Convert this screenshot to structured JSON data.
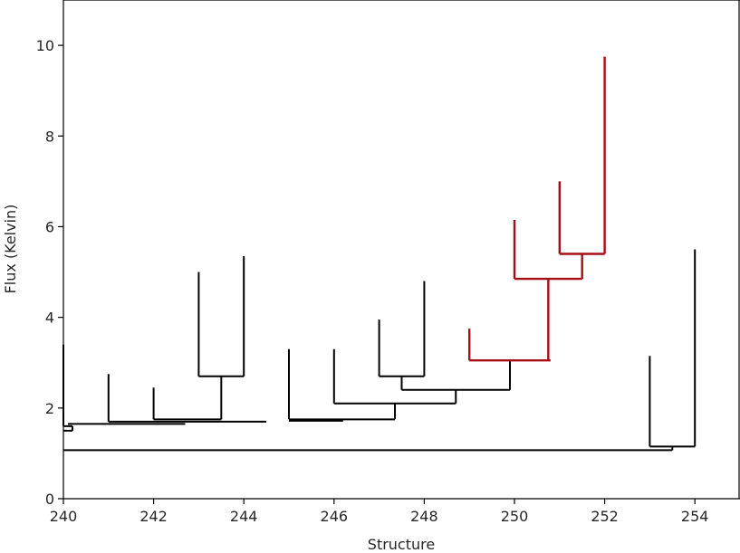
{
  "chart_data": {
    "type": "dendrogram",
    "title": "",
    "xlabel": "Structure",
    "ylabel": "Flux (Kelvin)",
    "xlim": [
      240,
      255
    ],
    "ylim": [
      0,
      11
    ],
    "xticks": [
      "240",
      "242",
      "244",
      "246",
      "248",
      "250",
      "252",
      "254"
    ],
    "yticks": [
      "0",
      "2",
      "4",
      "6",
      "8",
      "10"
    ],
    "grid": false,
    "default_color": "#000000",
    "highlight_color": "#a50f15",
    "segments": [
      {
        "x": [
          240.0,
          240.0
        ],
        "y": [
          1.6,
          3.4
        ]
      },
      {
        "x": [
          240.0,
          240.2
        ],
        "y": [
          1.6,
          1.6
        ]
      },
      {
        "x": [
          240.2,
          240.2
        ],
        "y": [
          1.5,
          1.6
        ]
      },
      {
        "x": [
          240.0,
          240.2
        ],
        "y": [
          1.5,
          1.5
        ]
      },
      {
        "x": [
          241.0,
          241.0
        ],
        "y": [
          1.7,
          2.75
        ]
      },
      {
        "x": [
          242.0,
          242.0
        ],
        "y": [
          1.75,
          2.45
        ]
      },
      {
        "x": [
          243.0,
          243.0
        ],
        "y": [
          2.7,
          5.0
        ]
      },
      {
        "x": [
          244.0,
          244.0
        ],
        "y": [
          2.7,
          5.35
        ]
      },
      {
        "x": [
          243.0,
          244.0
        ],
        "y": [
          2.7,
          2.7
        ]
      },
      {
        "x": [
          243.5,
          243.5
        ],
        "y": [
          1.75,
          2.7
        ]
      },
      {
        "x": [
          242.0,
          243.5
        ],
        "y": [
          1.75,
          1.75
        ]
      },
      {
        "x": [
          241.0,
          244.5
        ],
        "y": [
          1.7,
          1.7
        ]
      },
      {
        "x": [
          240.1,
          242.7
        ],
        "y": [
          1.65,
          1.65
        ]
      },
      {
        "x": [
          245.0,
          245.0
        ],
        "y": [
          1.75,
          3.3
        ]
      },
      {
        "x": [
          246.0,
          246.0
        ],
        "y": [
          2.1,
          3.3
        ]
      },
      {
        "x": [
          247.0,
          247.0
        ],
        "y": [
          2.7,
          3.95
        ]
      },
      {
        "x": [
          248.0,
          248.0
        ],
        "y": [
          2.7,
          4.8
        ]
      },
      {
        "x": [
          247.0,
          248.0
        ],
        "y": [
          2.7,
          2.7
        ]
      },
      {
        "x": [
          247.5,
          247.5
        ],
        "y": [
          2.4,
          2.7
        ]
      },
      {
        "x": [
          247.5,
          249.9
        ],
        "y": [
          2.4,
          2.4
        ]
      },
      {
        "x": [
          248.7,
          248.7
        ],
        "y": [
          2.1,
          2.4
        ]
      },
      {
        "x": [
          246.0,
          248.7
        ],
        "y": [
          2.1,
          2.1
        ]
      },
      {
        "x": [
          247.35,
          247.35
        ],
        "y": [
          1.75,
          2.1
        ]
      },
      {
        "x": [
          245.0,
          247.35
        ],
        "y": [
          1.75,
          1.75
        ]
      },
      {
        "x": [
          245.0,
          246.2
        ],
        "y": [
          1.72,
          1.72
        ]
      },
      {
        "x": [
          249.9,
          249.9
        ],
        "y": [
          2.4,
          3.05
        ]
      },
      {
        "x": [
          249.0,
          249.0
        ],
        "y": [
          3.05,
          3.75
        ],
        "highlight": true
      },
      {
        "x": [
          249.0,
          250.8
        ],
        "y": [
          3.05,
          3.05
        ],
        "highlight": true
      },
      {
        "x": [
          250.0,
          250.0
        ],
        "y": [
          4.85,
          6.15
        ],
        "highlight": true
      },
      {
        "x": [
          250.0,
          251.5
        ],
        "y": [
          4.85,
          4.85
        ],
        "highlight": true
      },
      {
        "x": [
          250.75,
          250.75
        ],
        "y": [
          3.05,
          4.85
        ],
        "highlight": true
      },
      {
        "x": [
          251.0,
          251.0
        ],
        "y": [
          5.4,
          7.0
        ],
        "highlight": true
      },
      {
        "x": [
          252.0,
          252.0
        ],
        "y": [
          5.4,
          9.75
        ],
        "highlight": true
      },
      {
        "x": [
          251.0,
          252.0
        ],
        "y": [
          5.4,
          5.4
        ],
        "highlight": true
      },
      {
        "x": [
          251.5,
          251.5
        ],
        "y": [
          4.85,
          5.4
        ],
        "highlight": true
      },
      {
        "x": [
          253.0,
          253.0
        ],
        "y": [
          1.15,
          3.15
        ]
      },
      {
        "x": [
          254.0,
          254.0
        ],
        "y": [
          1.15,
          5.5
        ]
      },
      {
        "x": [
          253.0,
          254.0
        ],
        "y": [
          1.15,
          1.15
        ]
      },
      {
        "x": [
          240.0,
          253.5
        ],
        "y": [
          1.07,
          1.07
        ]
      },
      {
        "x": [
          253.5,
          253.5
        ],
        "y": [
          1.07,
          1.15
        ]
      }
    ]
  }
}
